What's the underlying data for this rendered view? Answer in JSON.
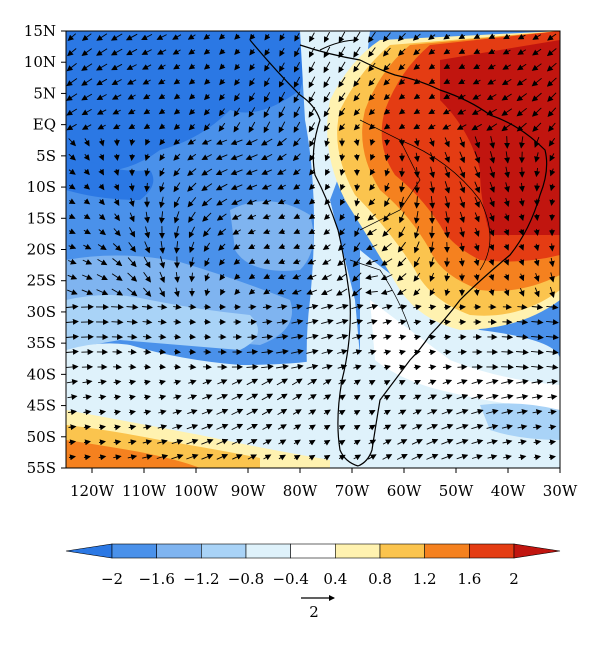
{
  "map": {
    "lat_labels": [
      "15N",
      "10N",
      "5N",
      "EQ",
      "5S",
      "10S",
      "15S",
      "20S",
      "25S",
      "30S",
      "35S",
      "40S",
      "45S",
      "50S",
      "55S"
    ],
    "lon_labels": [
      "120W",
      "110W",
      "100W",
      "90W",
      "80W",
      "70W",
      "60W",
      "50W",
      "40W",
      "30W"
    ],
    "lon_range": [
      -125,
      -30
    ],
    "lat_range": [
      -55,
      15
    ]
  },
  "colorbar": {
    "tick_labels": [
      "−2",
      "−1.6",
      "−1.2",
      "−0.8",
      "−0.4",
      "0.4",
      "0.8",
      "1.2",
      "1.6",
      "2"
    ],
    "colors": [
      "#2b78e4",
      "#4a91ea",
      "#7fb4f0",
      "#a9d3f7",
      "#dff2fb",
      "#ffffff",
      "#fff2b0",
      "#fbc44e",
      "#f5811f",
      "#e43c13",
      "#c1150f"
    ],
    "reference_vector_label": "2"
  }
}
